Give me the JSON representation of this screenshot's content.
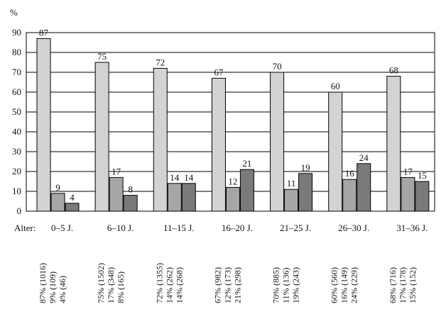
{
  "chart_data": {
    "type": "bar",
    "ylabel": "%",
    "ylim": [
      0,
      90
    ],
    "yticks": [
      0,
      10,
      20,
      30,
      40,
      50,
      60,
      70,
      80,
      90
    ],
    "grid": true,
    "axis_prefix": "Alter:",
    "categories": [
      "0–5 J.",
      "6–10 J.",
      "11–15 J.",
      "16–20 J.",
      "21–25 J.",
      "26–30 J.",
      "31–36 J."
    ],
    "series": [
      {
        "values": [
          87,
          75,
          72,
          67,
          70,
          60,
          68
        ],
        "color": "#d3d3d3"
      },
      {
        "values": [
          9,
          17,
          14,
          12,
          11,
          16,
          17
        ],
        "color": "#a6a6a6"
      },
      {
        "values": [
          4,
          8,
          14,
          21,
          19,
          24,
          15
        ],
        "color": "#7a7a7a"
      }
    ],
    "footnotes": [
      [
        "87% (1016)",
        "9% (109)",
        "4% (46)"
      ],
      [
        "75% (1502)",
        "17% (348)",
        "8% (165)"
      ],
      [
        "72% (1355)",
        "14% (262)",
        "14% (268)"
      ],
      [
        "67% (982)",
        "12% (173)",
        "21% (298)"
      ],
      [
        "70% (885)",
        "11% (136)",
        "19% (243)"
      ],
      [
        "60% (560)",
        "16% (149)",
        "24% (229)"
      ],
      [
        "68% (716)",
        "17% (178)",
        "15% (152)"
      ]
    ]
  }
}
